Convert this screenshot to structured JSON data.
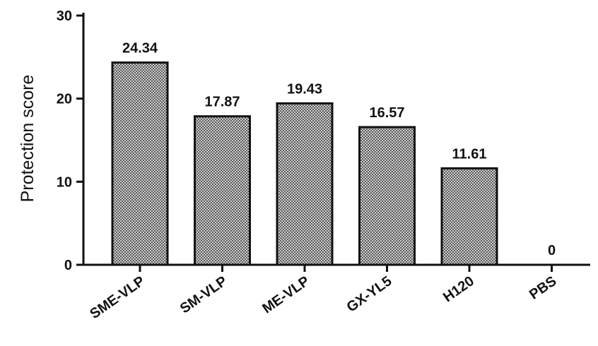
{
  "chart_data": {
    "type": "bar",
    "title": "",
    "xlabel": "",
    "ylabel": "Protection score",
    "ylim": [
      0,
      30
    ],
    "yticks": [
      0,
      10,
      20,
      30
    ],
    "categories": [
      "SME-VLP",
      "SM-VLP",
      "ME-VLP",
      "GX-YL5",
      "H120",
      "PBS"
    ],
    "values": [
      24.34,
      17.87,
      19.43,
      16.57,
      11.61,
      0
    ],
    "data_labels": [
      "24.34",
      "17.87",
      "19.43",
      "16.57",
      "11.61",
      "0"
    ],
    "bar_fill": "checkered-gray",
    "bar_edge_color": "#111111",
    "grid": false,
    "legend": "none"
  }
}
